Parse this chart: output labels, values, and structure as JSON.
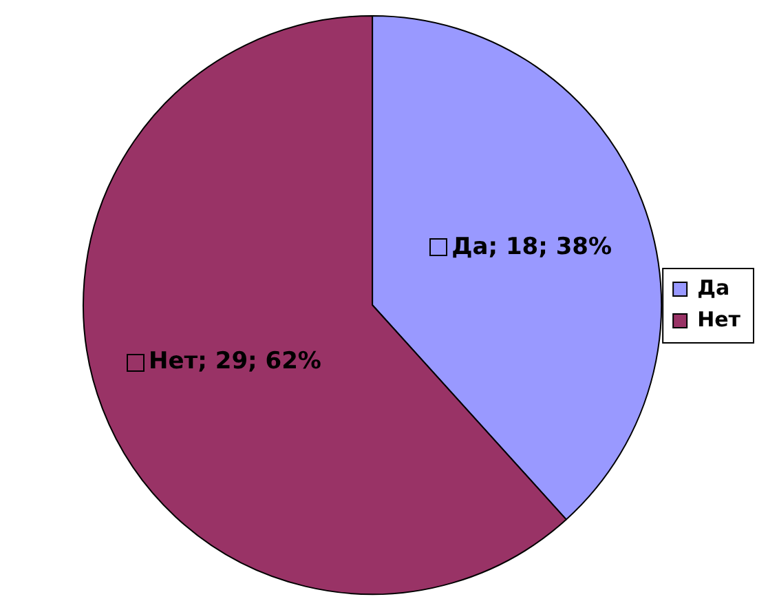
{
  "chart_data": {
    "type": "pie",
    "categories": [
      "Да",
      "Нет"
    ],
    "values": [
      18,
      29
    ],
    "colors": [
      "#9999ff",
      "#993366"
    ],
    "value_labels": [
      "Да; 18; 38%",
      "Нет; 29; 62%"
    ],
    "legend": "right"
  }
}
